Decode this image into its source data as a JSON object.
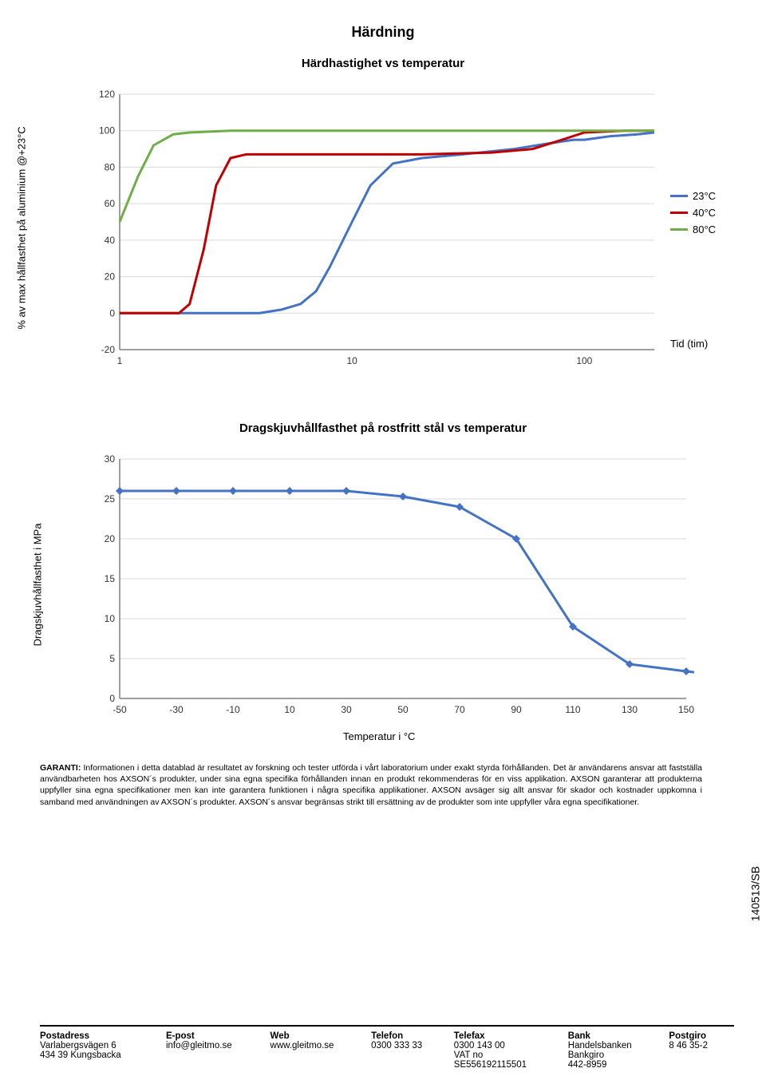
{
  "page_title": "Härdning",
  "chart1": {
    "subtitle": "Härdhastighet vs temperatur",
    "yaxis_label": "% av max hållfasthet på aluminium @+23°C",
    "xaxis_label": "Tid (tim)",
    "type": "line",
    "xscale": "log",
    "xlim": [
      1,
      200
    ],
    "ylim": [
      -20,
      120
    ],
    "yticks": [
      -20,
      0,
      20,
      40,
      60,
      80,
      100,
      120
    ],
    "xticks": [
      1,
      10,
      100
    ],
    "grid_color": "#d9d9d9",
    "axis_color": "#808080",
    "background": "#ffffff",
    "line_width": 3,
    "series": [
      {
        "name": "23°C",
        "color": "#4472c4",
        "points": [
          [
            1,
            0
          ],
          [
            2,
            0
          ],
          [
            3,
            0
          ],
          [
            4,
            0
          ],
          [
            5,
            2
          ],
          [
            6,
            5
          ],
          [
            7,
            12
          ],
          [
            8,
            25
          ],
          [
            10,
            50
          ],
          [
            12,
            70
          ],
          [
            15,
            82
          ],
          [
            20,
            85
          ],
          [
            30,
            87
          ],
          [
            50,
            90
          ],
          [
            70,
            93
          ],
          [
            90,
            95
          ],
          [
            100,
            95
          ],
          [
            130,
            97
          ],
          [
            170,
            98
          ],
          [
            200,
            99
          ]
        ]
      },
      {
        "name": "40°C",
        "color": "#c00000",
        "points": [
          [
            1,
            0
          ],
          [
            1.5,
            0
          ],
          [
            1.8,
            0
          ],
          [
            2,
            5
          ],
          [
            2.3,
            35
          ],
          [
            2.6,
            70
          ],
          [
            3,
            85
          ],
          [
            3.5,
            87
          ],
          [
            5,
            87
          ],
          [
            8,
            87
          ],
          [
            12,
            87
          ],
          [
            20,
            87
          ],
          [
            40,
            88
          ],
          [
            60,
            90
          ],
          [
            80,
            95
          ],
          [
            100,
            99
          ],
          [
            150,
            100
          ],
          [
            200,
            100
          ]
        ]
      },
      {
        "name": "80°C",
        "color": "#70ad47",
        "points": [
          [
            1,
            50
          ],
          [
            1.2,
            75
          ],
          [
            1.4,
            92
          ],
          [
            1.7,
            98
          ],
          [
            2,
            99
          ],
          [
            3,
            100
          ],
          [
            5,
            100
          ],
          [
            10,
            100
          ],
          [
            30,
            100
          ],
          [
            100,
            100
          ],
          [
            200,
            100
          ]
        ]
      }
    ]
  },
  "chart2": {
    "subtitle": "Dragskjuvhållfasthet på rostfritt stål vs temperatur",
    "yaxis_label": "Dragskjuvhållfasthet i MPa",
    "xaxis_label": "Temperatur i °C",
    "type": "line-marker",
    "xlim": [
      -50,
      150
    ],
    "ylim": [
      0,
      30
    ],
    "yticks": [
      0,
      5,
      10,
      15,
      20,
      25,
      30
    ],
    "xticks": [
      -50,
      -30,
      -10,
      10,
      30,
      50,
      70,
      90,
      110,
      130,
      150
    ],
    "grid_color": "#d9d9d9",
    "axis_color": "#808080",
    "background": "#ffffff",
    "line_width": 3,
    "marker_size": 5,
    "marker_shape": "diamond",
    "series": [
      {
        "name": "steel",
        "color": "#4472c4",
        "points": [
          [
            -50,
            26
          ],
          [
            -30,
            26
          ],
          [
            -10,
            26
          ],
          [
            10,
            26
          ],
          [
            30,
            26
          ],
          [
            50,
            25.3
          ],
          [
            70,
            24
          ],
          [
            90,
            20
          ],
          [
            110,
            9
          ],
          [
            130,
            4.3
          ],
          [
            150,
            3.4
          ],
          [
            160,
            3
          ]
        ]
      }
    ]
  },
  "disclaimer_label": "GARANTI:",
  "disclaimer_text": "Informationen i detta datablad är resultatet av forskning och tester utförda i vårt laboratorium under exakt styrda förhållanden. Det är användarens ansvar att fastställa användbarheten hos AXSON´s produkter, under sina egna specifika förhållanden innan en produkt rekommenderas för en viss applikation. AXSON garanterar att produkterna uppfyller sina egna specifikationer men kan inte garantera funktionen i några specifika applikationer. AXSON avsäger sig allt ansvar för skador och kostnader uppkomna i samband med användningen av AXSON´s produkter. AXSON´s ansvar begränsas strikt till ersättning av de produkter som inte uppfyller våra egna specifikationer.",
  "sidecode": "140513/SB",
  "footer": {
    "headers": [
      "Postadress",
      "E-post",
      "Web",
      "Telefon",
      "Telefax",
      "Bank",
      "Postgiro"
    ],
    "rows": [
      [
        "Varlabergsvägen 6",
        "info@gleitmo.se",
        "www.gleitmo.se",
        "0300 333 33",
        "0300 143 00",
        "Handelsbanken",
        "8 46 35-2"
      ],
      [
        "434 39 Kungsbacka",
        "",
        "",
        "",
        "VAT no",
        "Bankgiro",
        ""
      ],
      [
        "",
        "",
        "",
        "",
        "SE556192115501",
        "442-8959",
        ""
      ]
    ]
  }
}
